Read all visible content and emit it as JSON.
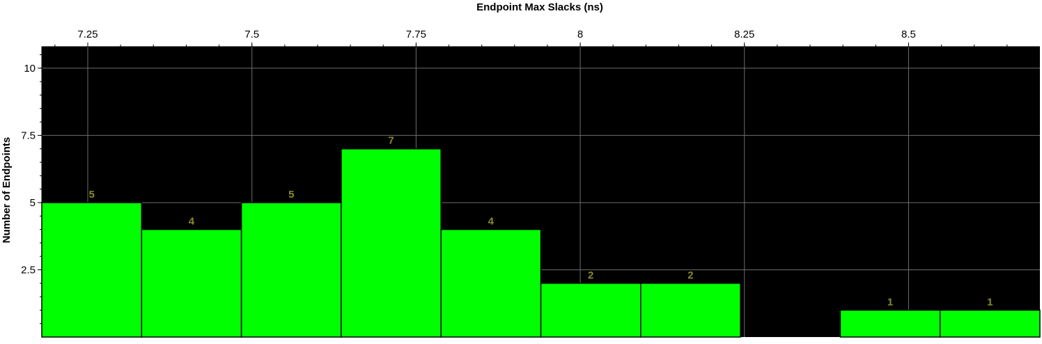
{
  "chart_data": {
    "type": "bar",
    "title": "Endpoint Max Slacks (ns)",
    "xlabel": "",
    "ylabel": "Number of Endpoints",
    "x_ticks": [
      "7.25",
      "7.5",
      "7.75",
      "8",
      "8.25",
      "8.5"
    ],
    "x_tick_values": [
      7.25,
      7.5,
      7.75,
      8,
      8.25,
      8.5
    ],
    "y_ticks": [
      "2.5",
      "5",
      "7.5",
      "10"
    ],
    "y_tick_values": [
      2.5,
      5,
      7.5,
      10
    ],
    "xlim": [
      7.18,
      8.7
    ],
    "ylim": [
      0,
      10.8
    ],
    "bin_width": 0.152,
    "bins": [
      {
        "start": 7.18,
        "count": 5,
        "label": "5"
      },
      {
        "start": 7.332,
        "count": 4,
        "label": "4"
      },
      {
        "start": 7.484,
        "count": 5,
        "label": "5"
      },
      {
        "start": 7.636,
        "count": 7,
        "label": "7"
      },
      {
        "start": 7.788,
        "count": 4,
        "label": "4"
      },
      {
        "start": 7.94,
        "count": 2,
        "label": "2"
      },
      {
        "start": 8.092,
        "count": 2,
        "label": "2"
      },
      {
        "start": 8.244,
        "count": 0,
        "label": ""
      },
      {
        "start": 8.396,
        "count": 1,
        "label": "1"
      },
      {
        "start": 8.548,
        "count": 1,
        "label": "1"
      }
    ],
    "grid": true,
    "colors": {
      "plot_background": "#000000",
      "bar_fill": "#00ff00",
      "bar_stroke": "#000000",
      "bar_label": "#8b8b2a",
      "grid": "#6e6e6e",
      "page_background": "#ffffff"
    }
  }
}
